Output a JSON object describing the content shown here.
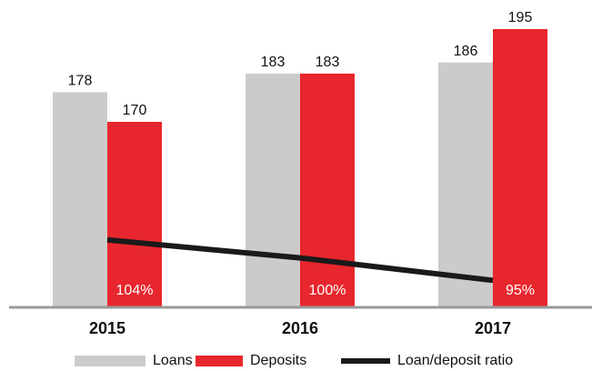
{
  "chart_data": {
    "type": "bar",
    "categories": [
      "2015",
      "2016",
      "2017"
    ],
    "series": [
      {
        "name": "Loans",
        "color": "#cccbcb",
        "values": [
          178,
          183,
          186
        ]
      },
      {
        "name": "Deposits",
        "color": "#e8262d",
        "values": [
          170,
          183,
          195
        ]
      },
      {
        "name": "Loan/deposit ratio",
        "type": "line",
        "axis": "y2",
        "color": "#1a1a1a",
        "values": [
          104,
          100,
          95
        ],
        "value_labels": [
          "104%",
          "100%",
          "95%"
        ]
      }
    ],
    "ylim": [
      120,
      200
    ],
    "y2lim": [
      89,
      155
    ],
    "grid": false,
    "legend": "bottom"
  }
}
